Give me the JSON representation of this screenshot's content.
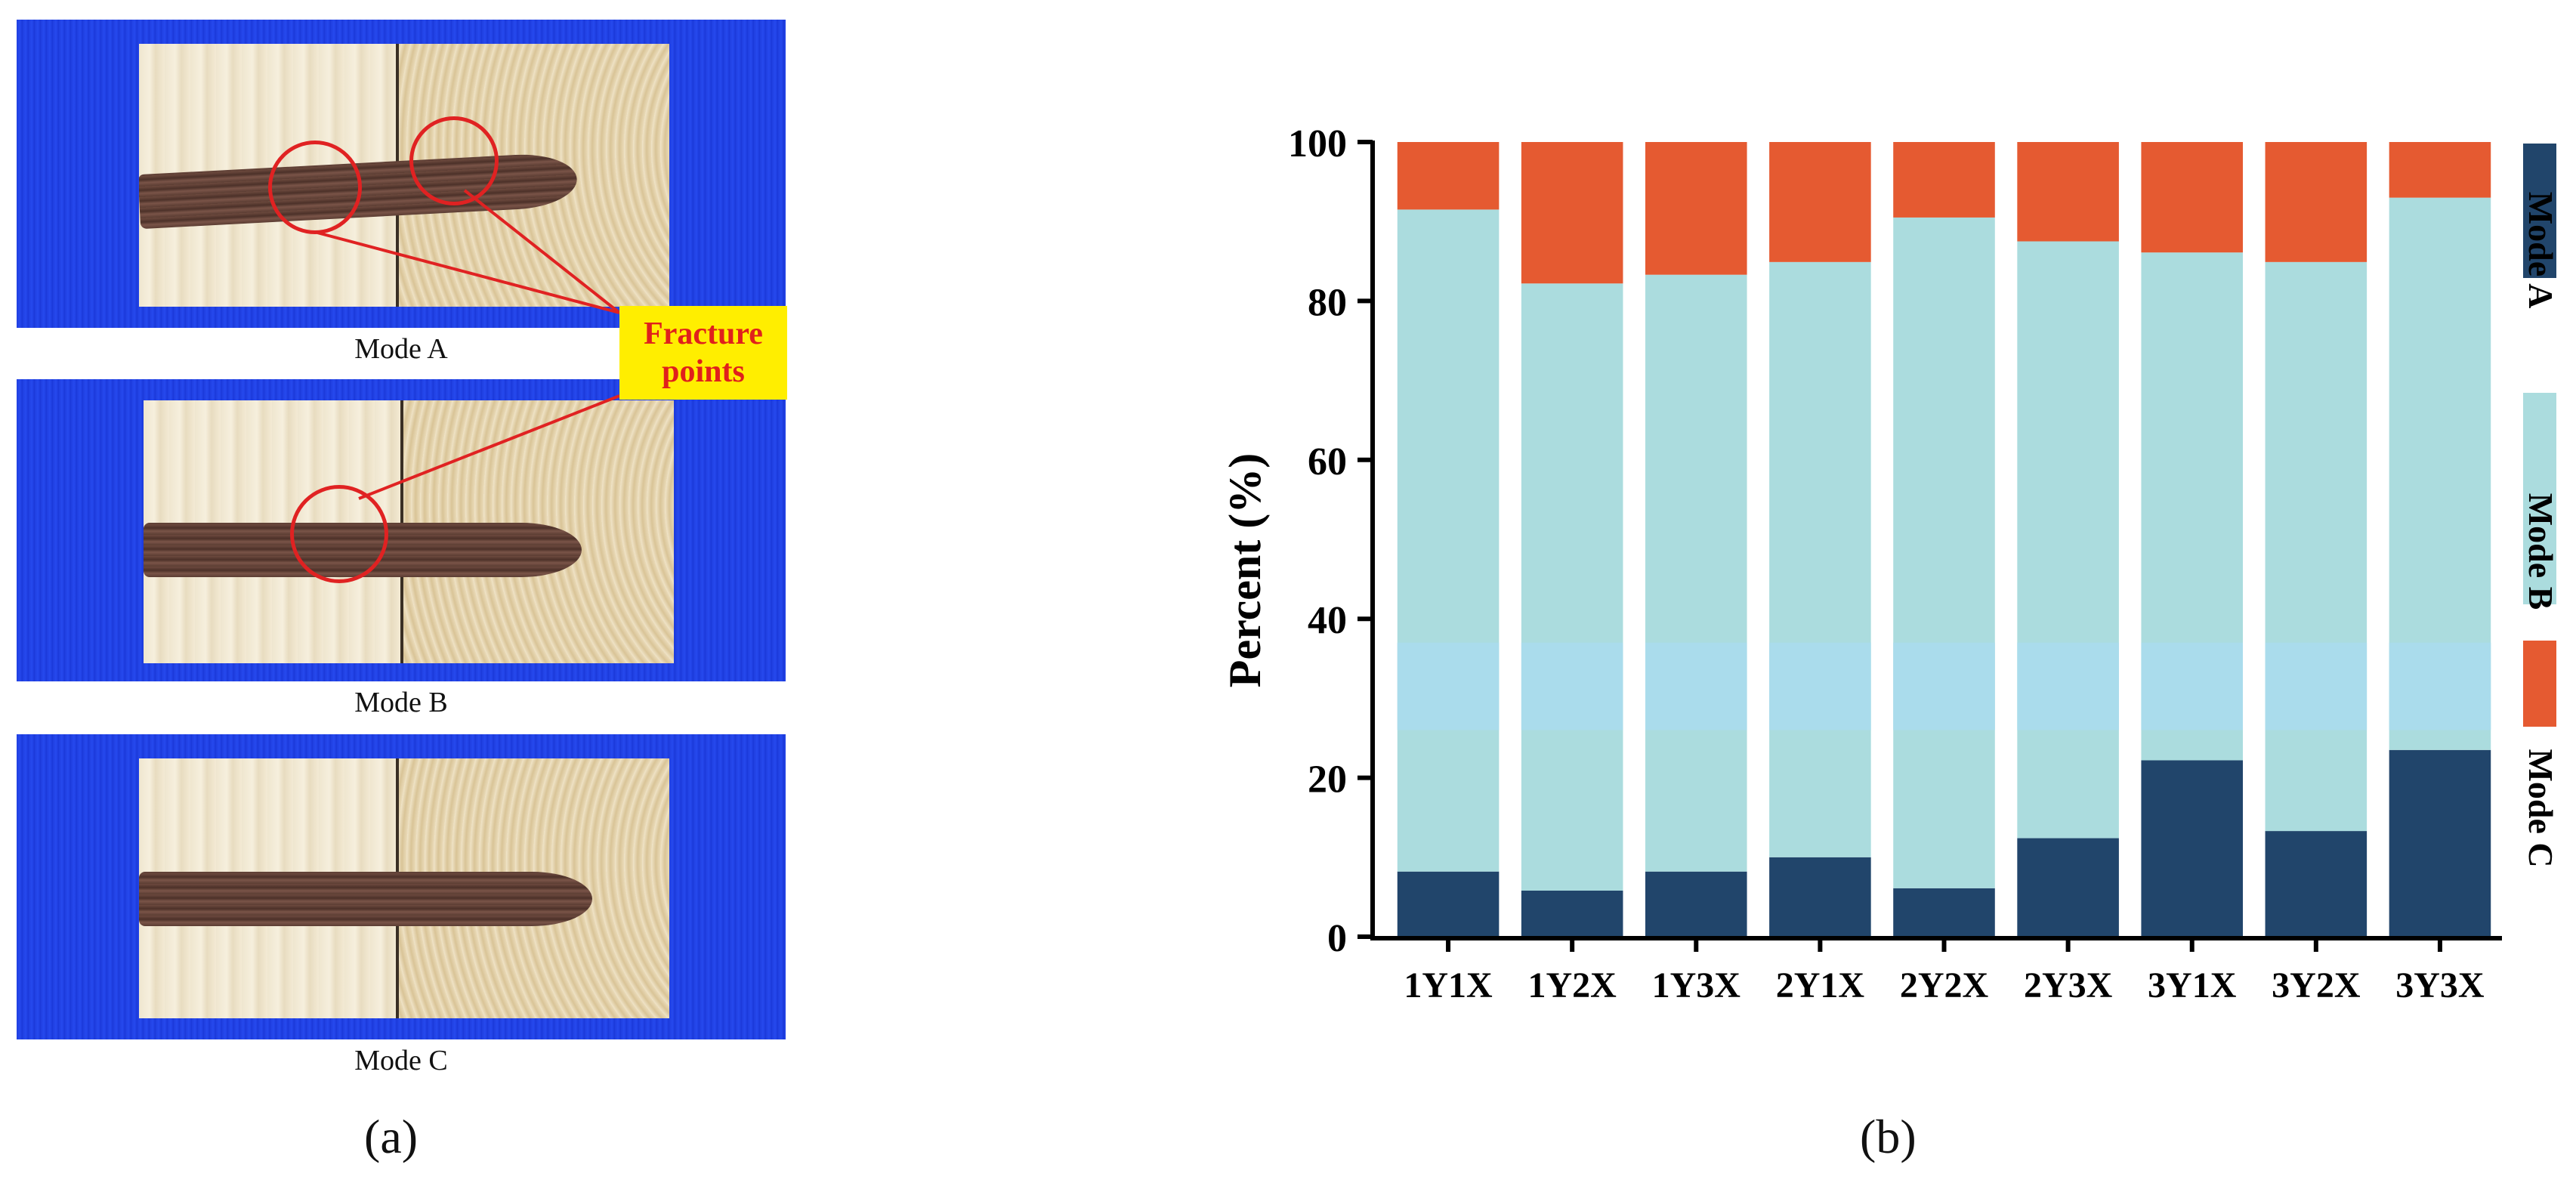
{
  "figure": {
    "panel_a_label": "(a)",
    "panel_b_label": "(b)"
  },
  "photos": {
    "modes": [
      "Mode A",
      "Mode B",
      "Mode C"
    ],
    "callout_line1": "Fracture",
    "callout_line2": "points"
  },
  "colors": {
    "mode_a": "#21456b",
    "mode_b": "#abdcde",
    "mode_c": "#e55a31",
    "highlight_band": "#aadcec",
    "photo_background": "#1f3fe0",
    "callout_fill": "#ffee00",
    "callout_text": "#e0201c",
    "circle": "#e02222"
  },
  "chart_data": {
    "type": "bar",
    "stacked": true,
    "normalized": true,
    "categories": [
      "1Y1X",
      "1Y2X",
      "1Y3X",
      "2Y1X",
      "2Y2X",
      "2Y3X",
      "3Y1X",
      "3Y2X",
      "3Y3X"
    ],
    "series": [
      {
        "name": "Mode A",
        "values": [
          8.2,
          5.8,
          8.2,
          10.0,
          6.1,
          12.4,
          22.2,
          13.3,
          23.5
        ]
      },
      {
        "name": "Mode B",
        "values": [
          83.3,
          76.4,
          75.1,
          74.9,
          84.4,
          75.1,
          63.9,
          71.6,
          69.5
        ]
      },
      {
        "name": "Mode C",
        "values": [
          8.5,
          17.8,
          16.7,
          15.1,
          9.5,
          12.5,
          13.9,
          15.1,
          7.0
        ]
      }
    ],
    "ylabel": "Percent  (%)",
    "xlabel": "",
    "ylim": [
      0,
      100
    ],
    "yticks": [
      0,
      20,
      40,
      60,
      80,
      100
    ],
    "highlight_band": [
      26,
      37
    ],
    "legend_position": "right, vertical",
    "legend": [
      "Mode A",
      "Mode B",
      "Mode C"
    ]
  }
}
